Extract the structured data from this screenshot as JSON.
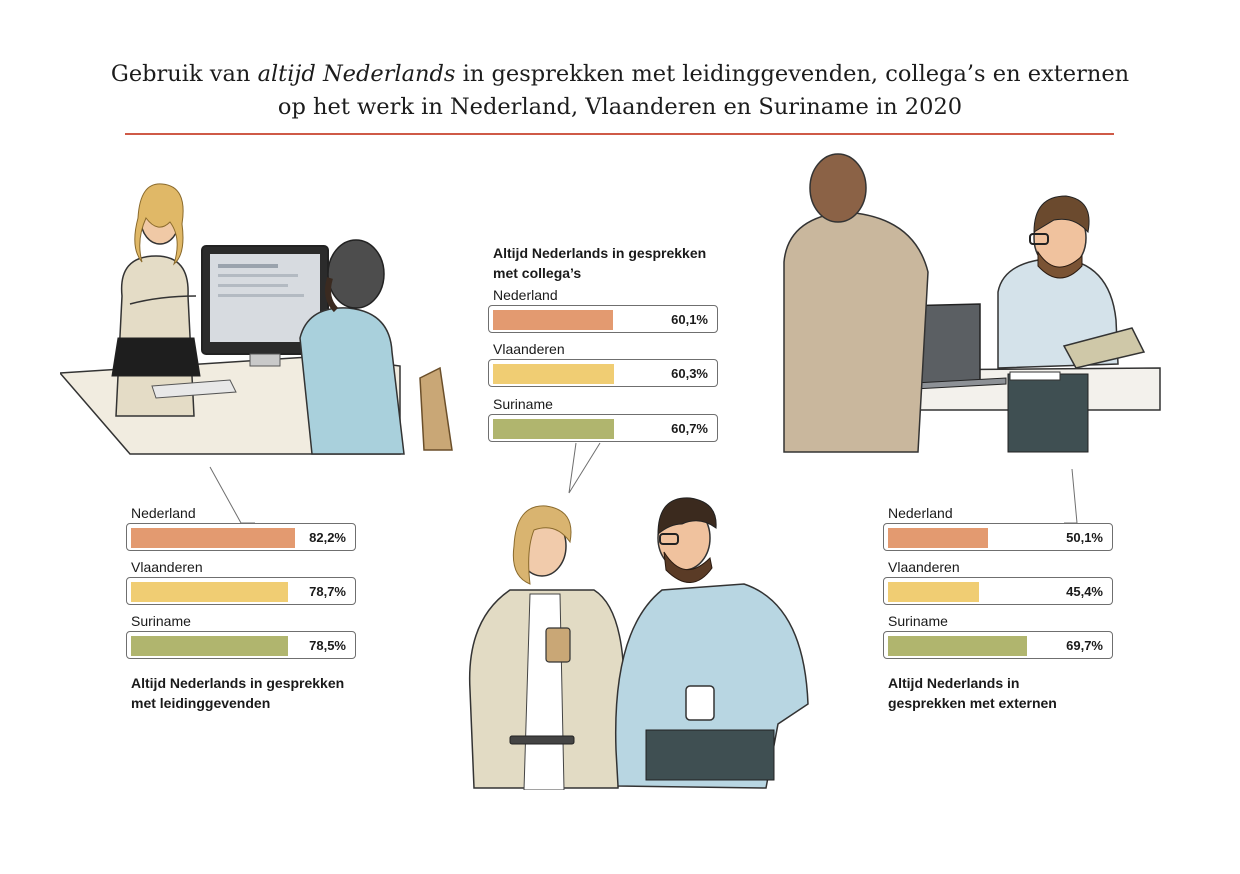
{
  "title": {
    "line1_pre": "Gebruik van ",
    "line1_emphasis": "altijd Nederlands",
    "line1_post": " in gesprekken met leidinggevenden, collega’s en externen",
    "line2": "op het werk in Nederland, Vlaanderen en Suriname in 2020"
  },
  "colors": {
    "title_rule": "#cf5a47",
    "Nederland": "#e39a70",
    "Vlaanderen": "#f0cd73",
    "Suriname": "#b0b56e"
  },
  "chart_data": [
    {
      "type": "bar",
      "title": "Altijd Nederlands in gesprekken met leidinggevenden",
      "categories": [
        "Nederland",
        "Vlaanderen",
        "Suriname"
      ],
      "values": [
        82.2,
        78.7,
        78.5
      ],
      "value_labels": [
        "82,2%",
        "78,7%",
        "78,5%"
      ],
      "ylim": [
        0,
        100
      ]
    },
    {
      "type": "bar",
      "title": "Altijd Nederlands in gesprekken met collega’s",
      "categories": [
        "Nederland",
        "Vlaanderen",
        "Suriname"
      ],
      "values": [
        60.1,
        60.3,
        60.7
      ],
      "value_labels": [
        "60,1%",
        "60,3%",
        "60,7%"
      ],
      "ylim": [
        0,
        100
      ]
    },
    {
      "type": "bar",
      "title": "Altijd Nederlands in gesprekken met externen",
      "categories": [
        "Nederland",
        "Vlaanderen",
        "Suriname"
      ],
      "values": [
        50.1,
        45.4,
        69.7
      ],
      "value_labels": [
        "50,1%",
        "45,4%",
        "69,7%"
      ],
      "ylim": [
        0,
        100
      ]
    }
  ]
}
